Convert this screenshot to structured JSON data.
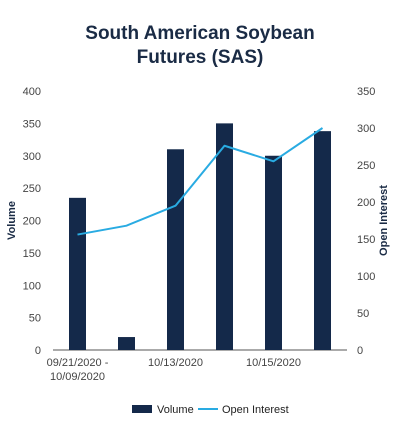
{
  "title_lines": [
    "South American Soybean",
    "Futures (SAS)"
  ],
  "chart_data": {
    "type": "bar",
    "title": "South American Soybean Futures (SAS)",
    "categories": [
      "09/21/2020 - 10/09/2020",
      "",
      "10/13/2020",
      "",
      "10/15/2020",
      ""
    ],
    "x_tick_labels": [
      {
        "category_index": 0,
        "lines": [
          "09/21/2020 -",
          "10/09/2020"
        ]
      },
      {
        "category_index": 2,
        "lines": [
          "10/13/2020"
        ]
      },
      {
        "category_index": 4,
        "lines": [
          "10/15/2020"
        ]
      }
    ],
    "series": [
      {
        "name": "Volume",
        "type": "bar",
        "axis": "left",
        "color": "#14294a",
        "values": [
          235,
          20,
          310,
          350,
          300,
          338
        ]
      },
      {
        "name": "Open Interest",
        "type": "line",
        "axis": "right",
        "color": "#29abe2",
        "values": [
          156,
          168,
          195,
          276,
          255,
          300
        ]
      }
    ],
    "ylabel": "Volume",
    "ylim": [
      0,
      400
    ],
    "yticks": [
      0,
      50,
      100,
      150,
      200,
      250,
      300,
      350,
      400
    ],
    "y2label": "Open Interest",
    "y2lim": [
      0,
      350
    ],
    "y2ticks": [
      0,
      50,
      100,
      150,
      200,
      250,
      300,
      350
    ],
    "grid": false,
    "legend": "bottom"
  }
}
